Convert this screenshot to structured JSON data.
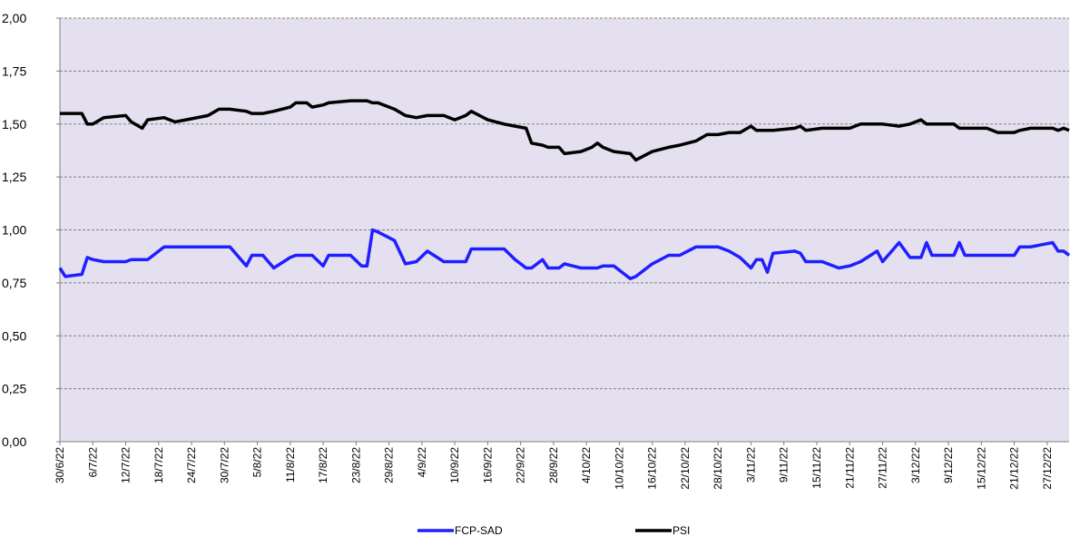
{
  "chart_data": {
    "type": "line",
    "x": [
      "30/6/22",
      "1/7/22",
      "4/7/22",
      "5/7/22",
      "6/7/22",
      "8/7/22",
      "12/7/22",
      "13/7/22",
      "15/7/22",
      "16/7/22",
      "19/7/22",
      "21/7/22",
      "23/7/22",
      "27/7/22",
      "29/7/22",
      "31/7/22",
      "3/8/22",
      "4/8/22",
      "6/8/22",
      "8/8/22",
      "11/8/22",
      "12/8/22",
      "14/8/22",
      "15/8/22",
      "17/8/22",
      "18/8/22",
      "22/8/22",
      "24/8/22",
      "25/8/22",
      "26/8/22",
      "27/8/22",
      "30/8/22",
      "1/9/22",
      "3/9/22",
      "5/9/22",
      "8/9/22",
      "10/9/22",
      "12/9/22",
      "13/9/22",
      "16/9/22",
      "19/9/22",
      "21/9/22",
      "23/9/22",
      "24/9/22",
      "26/9/22",
      "27/9/22",
      "29/9/22",
      "30/9/22",
      "3/10/22",
      "5/10/22",
      "6/10/22",
      "7/10/22",
      "9/10/22",
      "12/10/22",
      "13/10/22",
      "16/10/22",
      "19/10/22",
      "21/10/22",
      "24/10/22",
      "26/10/22",
      "28/10/22",
      "30/10/22",
      "1/11/22",
      "3/11/22",
      "4/11/22",
      "5/11/22",
      "6/11/22",
      "7/11/22",
      "11/11/22",
      "12/11/22",
      "13/11/22",
      "16/11/22",
      "19/11/22",
      "21/11/22",
      "23/11/22",
      "26/11/22",
      "27/11/22",
      "30/11/22",
      "2/12/22",
      "4/12/22",
      "5/12/22",
      "6/12/22",
      "10/12/22",
      "11/12/22",
      "12/12/22",
      "16/12/22",
      "18/12/22",
      "21/12/22",
      "22/12/22",
      "24/12/22",
      "26/12/22",
      "28/12/22",
      "29/12/22",
      "30/12/22",
      "31/12/22"
    ],
    "series": [
      {
        "name": "FCP-SAD",
        "color": "#1f1fff",
        "values": [
          0.82,
          0.78,
          0.79,
          0.87,
          0.86,
          0.85,
          0.85,
          0.86,
          0.86,
          0.86,
          0.92,
          0.92,
          0.92,
          0.92,
          0.92,
          0.92,
          0.83,
          0.88,
          0.88,
          0.82,
          0.87,
          0.88,
          0.88,
          0.88,
          0.83,
          0.88,
          0.88,
          0.83,
          0.83,
          1.0,
          0.99,
          0.95,
          0.84,
          0.85,
          0.9,
          0.85,
          0.85,
          0.85,
          0.91,
          0.91,
          0.91,
          0.86,
          0.82,
          0.82,
          0.86,
          0.82,
          0.82,
          0.84,
          0.82,
          0.82,
          0.82,
          0.83,
          0.83,
          0.77,
          0.78,
          0.84,
          0.88,
          0.88,
          0.92,
          0.92,
          0.92,
          0.9,
          0.87,
          0.82,
          0.86,
          0.86,
          0.8,
          0.89,
          0.9,
          0.89,
          0.85,
          0.85,
          0.82,
          0.83,
          0.85,
          0.9,
          0.85,
          0.94,
          0.87,
          0.87,
          0.94,
          0.88,
          0.88,
          0.94,
          0.88,
          0.88,
          0.88,
          0.88,
          0.92,
          0.92,
          0.93,
          0.94,
          0.9,
          0.9,
          0.88
        ]
      },
      {
        "name": "PSI",
        "color": "#000000",
        "values": [
          1.55,
          1.55,
          1.55,
          1.5,
          1.5,
          1.53,
          1.54,
          1.51,
          1.48,
          1.52,
          1.53,
          1.51,
          1.52,
          1.54,
          1.57,
          1.57,
          1.56,
          1.55,
          1.55,
          1.56,
          1.58,
          1.6,
          1.6,
          1.58,
          1.59,
          1.6,
          1.61,
          1.61,
          1.61,
          1.6,
          1.6,
          1.57,
          1.54,
          1.53,
          1.54,
          1.54,
          1.52,
          1.54,
          1.56,
          1.52,
          1.5,
          1.49,
          1.48,
          1.41,
          1.4,
          1.39,
          1.39,
          1.36,
          1.37,
          1.39,
          1.41,
          1.39,
          1.37,
          1.36,
          1.33,
          1.37,
          1.39,
          1.4,
          1.42,
          1.45,
          1.45,
          1.46,
          1.46,
          1.49,
          1.47,
          1.47,
          1.47,
          1.47,
          1.48,
          1.49,
          1.47,
          1.48,
          1.48,
          1.48,
          1.5,
          1.5,
          1.5,
          1.49,
          1.5,
          1.52,
          1.5,
          1.5,
          1.5,
          1.48,
          1.48,
          1.48,
          1.46,
          1.46,
          1.47,
          1.48,
          1.48,
          1.48,
          1.47,
          1.48,
          1.47
        ]
      }
    ],
    "xlim": [
      "30/6/22",
      "31/12/22"
    ],
    "xticks": [
      "30/6/22",
      "6/7/22",
      "12/7/22",
      "18/7/22",
      "24/7/22",
      "30/7/22",
      "5/8/22",
      "11/8/22",
      "17/8/22",
      "23/8/22",
      "29/8/22",
      "4/9/22",
      "10/9/22",
      "16/9/22",
      "22/9/22",
      "28/9/22",
      "4/10/22",
      "10/10/22",
      "16/10/22",
      "22/10/22",
      "28/10/22",
      "3/11/22",
      "9/11/22",
      "15/11/22",
      "21/11/22",
      "27/11/22",
      "3/12/22",
      "9/12/22",
      "15/12/22",
      "21/12/22",
      "27/12/22"
    ],
    "ylim": [
      0,
      2
    ],
    "yticks": [
      {
        "value": 0,
        "label": "0,00"
      },
      {
        "value": 0.25,
        "label": "0,25"
      },
      {
        "value": 0.5,
        "label": "0,50"
      },
      {
        "value": 0.75,
        "label": "0,75"
      },
      {
        "value": 1,
        "label": "1,00"
      },
      {
        "value": 1.25,
        "label": "1,25"
      },
      {
        "value": 1.5,
        "label": "1,50"
      },
      {
        "value": 1.75,
        "label": "1,75"
      },
      {
        "value": 2,
        "label": "2,00"
      }
    ],
    "grid": true,
    "legend": "bottom",
    "background": "#e5e0ef"
  }
}
